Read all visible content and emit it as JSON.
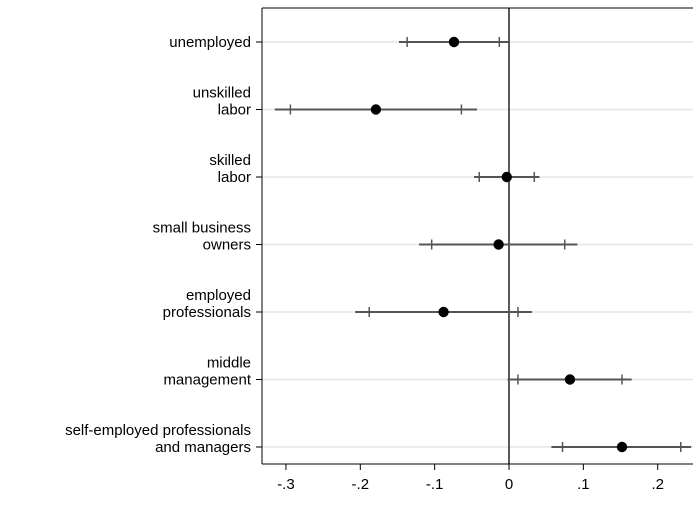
{
  "chart_data": {
    "type": "coefficient-plot",
    "title": "",
    "xlabel": "",
    "ylabel": "",
    "xlim": [
      -0.33,
      0.245
    ],
    "x_ticks": [
      -0.3,
      -0.2,
      -0.1,
      0,
      0.1,
      0.2
    ],
    "x_tick_labels": [
      "-.3",
      "-.2",
      "-.1",
      "0",
      ".1",
      ".2"
    ],
    "reference_line": 0,
    "grid": "horizontal",
    "categories": [
      {
        "label_lines": [
          "unemployed"
        ],
        "estimate": -0.074,
        "ci_inner": [
          -0.137,
          -0.013
        ],
        "ci_outer": [
          -0.148,
          -0.001
        ]
      },
      {
        "label_lines": [
          "unskilled",
          "labor"
        ],
        "estimate": -0.179,
        "ci_inner": [
          -0.294,
          -0.064
        ],
        "ci_outer": [
          -0.315,
          -0.043
        ]
      },
      {
        "label_lines": [
          "skilled",
          "labor"
        ],
        "estimate": -0.003,
        "ci_inner": [
          -0.04,
          0.034
        ],
        "ci_outer": [
          -0.047,
          0.041
        ]
      },
      {
        "label_lines": [
          "small business",
          "owners"
        ],
        "estimate": -0.014,
        "ci_inner": [
          -0.104,
          0.075
        ],
        "ci_outer": [
          -0.121,
          0.092
        ]
      },
      {
        "label_lines": [
          "employed",
          "professionals"
        ],
        "estimate": -0.088,
        "ci_inner": [
          -0.188,
          0.012
        ],
        "ci_outer": [
          -0.207,
          0.031
        ]
      },
      {
        "label_lines": [
          "middle",
          "management"
        ],
        "estimate": 0.082,
        "ci_inner": [
          0.012,
          0.152
        ],
        "ci_outer": [
          -0.002,
          0.165
        ]
      },
      {
        "label_lines": [
          "self-employed professionals",
          "and managers"
        ],
        "estimate": 0.152,
        "ci_inner": [
          0.072,
          0.231
        ],
        "ci_outer": [
          0.057,
          0.245
        ]
      }
    ],
    "colors": {
      "point": "#000000",
      "ci": "#555555",
      "grid": "#e6e6e6",
      "axis": "#000000"
    }
  }
}
